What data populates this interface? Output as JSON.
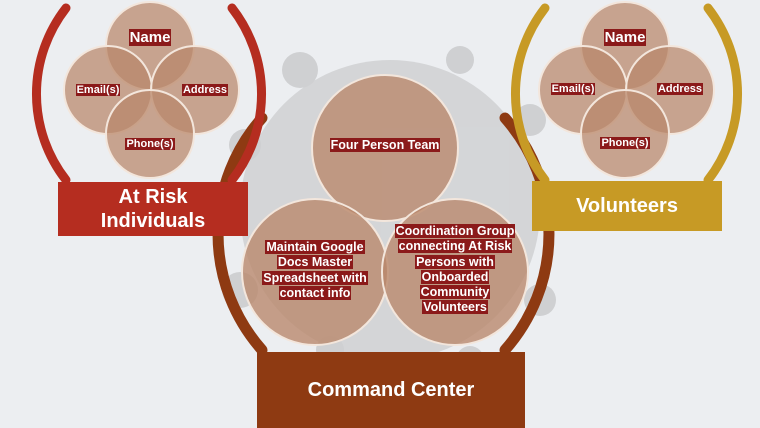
{
  "colors": {
    "background": "#eceef1",
    "circle_fill": "#b9876a",
    "circle_stroke": "#f3e6dc",
    "at_risk_red": "#b52d20",
    "volunteer_gold": "#c79a25",
    "command_brown": "#8e3a12",
    "text_highlight": "#8b1a1a"
  },
  "at_risk": {
    "venn": {
      "name": "Name",
      "email": "Email(s)",
      "address": "Address",
      "phone": "Phone(s)"
    },
    "banner": "At Risk Individuals"
  },
  "volunteers": {
    "venn": {
      "name": "Name",
      "email": "Email(s)",
      "address": "Address",
      "phone": "Phone(s)"
    },
    "banner": "Volunteers"
  },
  "command_center": {
    "top": "Four Person Team",
    "left": "Maintain Google Docs Master Spreadsheet with contact info",
    "right": "Coordination Group connecting At Risk Persons with Onboarded Community Volunteers",
    "banner": "Command Center"
  }
}
